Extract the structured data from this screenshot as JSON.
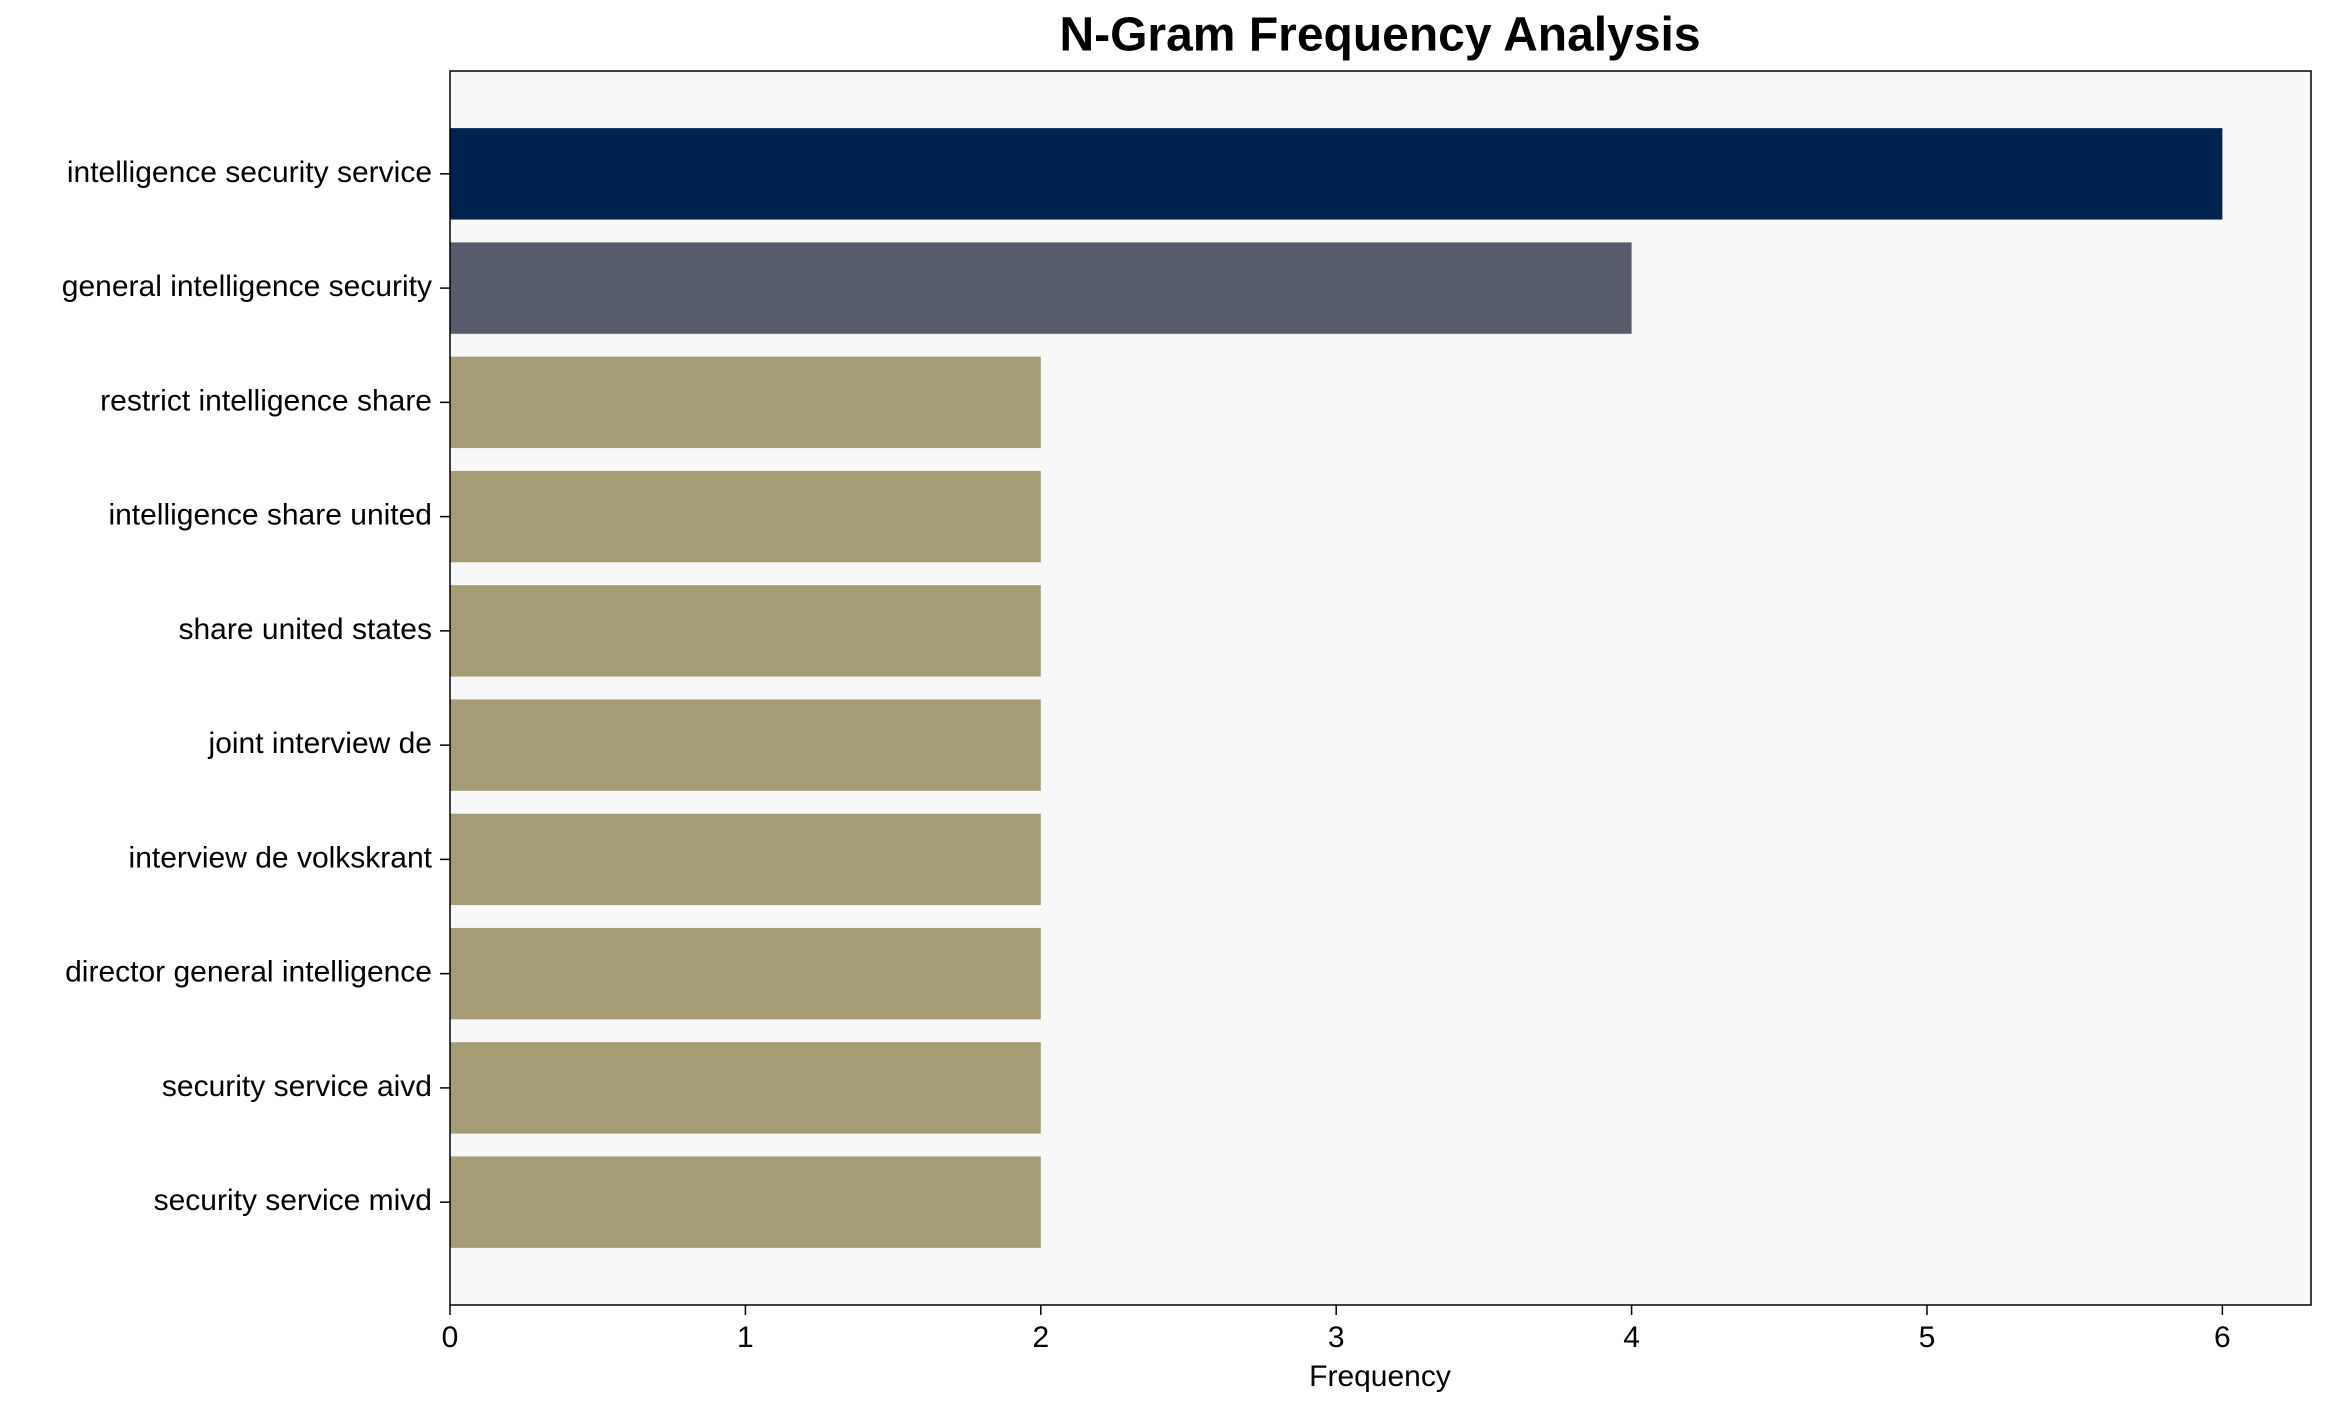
{
  "chart_data": {
    "type": "barh",
    "title": "N-Gram Frequency Analysis",
    "xlabel": "Frequency",
    "categories": [
      "intelligence security service",
      "general intelligence security",
      "restrict intelligence share",
      "intelligence share united",
      "share united states",
      "joint interview de",
      "interview de volkskrant",
      "director general intelligence",
      "security service aivd",
      "security service mivd"
    ],
    "values": [
      6,
      4,
      2,
      2,
      2,
      2,
      2,
      2,
      2,
      2
    ],
    "colors": [
      "#00224e",
      "#575d6d",
      "#a59c74",
      "#a59c74",
      "#a59c74",
      "#a59c74",
      "#a59c74",
      "#a59c74",
      "#a59c74",
      "#a59c74"
    ],
    "xlim": [
      0,
      6.3
    ],
    "xticks": [
      0,
      1,
      2,
      3,
      4,
      5,
      6
    ],
    "grid": false
  }
}
